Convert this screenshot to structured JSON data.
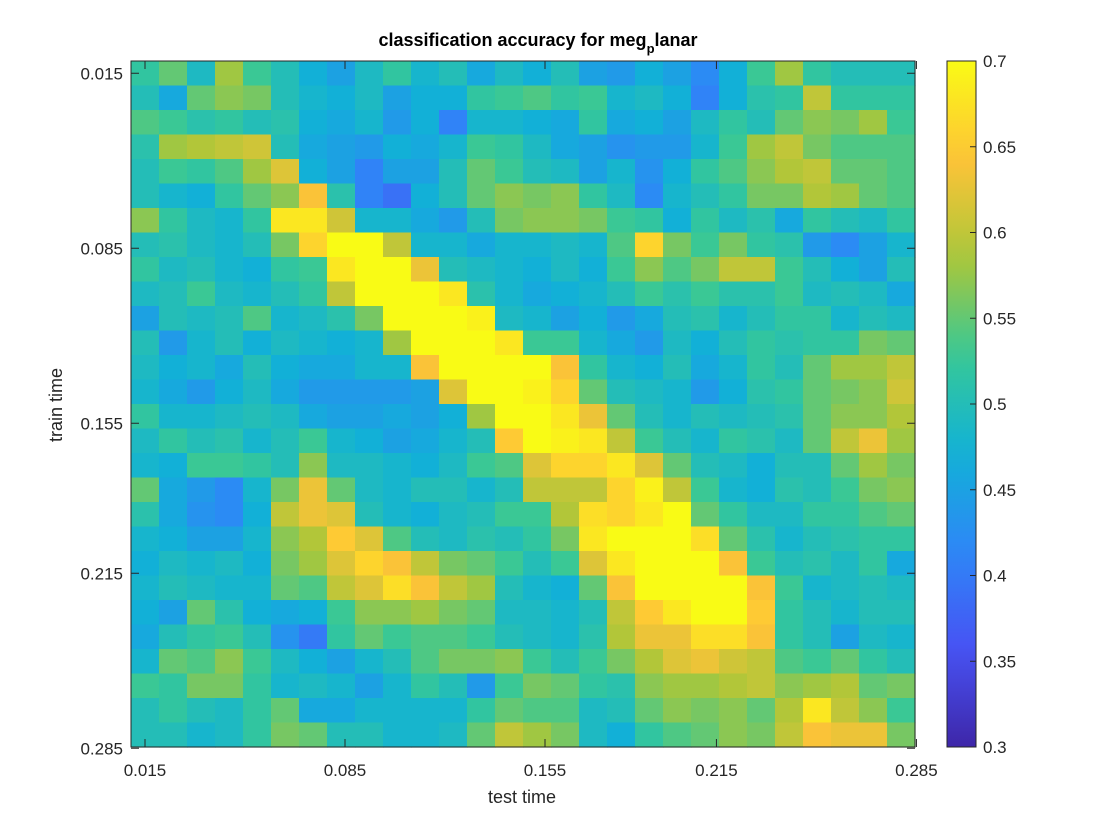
{
  "chart_data": {
    "type": "heatmap",
    "title": "classification accuracy for meg",
    "title_subscript": "p",
    "title_suffix": "lanar",
    "xlabel": "test time",
    "ylabel": "train time",
    "x_ticks": [
      0.015,
      0.085,
      0.155,
      0.215,
      0.285
    ],
    "y_ticks": [
      0.015,
      0.085,
      0.155,
      0.215,
      0.285
    ],
    "x_tick_labels": [
      "0.015",
      "0.085",
      "0.155",
      "0.215",
      "0.285"
    ],
    "y_tick_labels": [
      "0.015",
      "0.085",
      "0.155",
      "0.215",
      "0.285"
    ],
    "xlim": [
      0.015,
      0.285
    ],
    "ylim": [
      0.015,
      0.285
    ],
    "y_direction": "reversed",
    "grid_step": 0.0098,
    "n_rows": 28,
    "n_cols": 28,
    "colormap": "parula",
    "colorbar": {
      "range": [
        0.3,
        0.7
      ],
      "ticks": [
        0.3,
        0.35,
        0.4,
        0.45,
        0.5,
        0.55,
        0.6,
        0.65,
        0.7
      ],
      "tick_labels": [
        "0.3",
        "0.35",
        "0.4",
        "0.45",
        "0.5",
        "0.55",
        "0.6",
        "0.65",
        "0.7"
      ]
    },
    "values": [
      [
        0.52,
        0.55,
        0.49,
        0.58,
        0.53,
        0.5,
        0.47,
        0.45,
        0.49,
        0.52,
        0.48,
        0.5,
        0.46,
        0.49,
        0.47,
        0.5,
        0.45,
        0.44,
        0.47,
        0.45,
        0.42,
        0.47,
        0.53,
        0.58,
        0.52,
        0.5,
        0.5,
        0.5
      ],
      [
        0.5,
        0.46,
        0.55,
        0.57,
        0.56,
        0.5,
        0.48,
        0.47,
        0.49,
        0.45,
        0.47,
        0.47,
        0.52,
        0.53,
        0.54,
        0.52,
        0.53,
        0.48,
        0.49,
        0.47,
        0.41,
        0.47,
        0.51,
        0.52,
        0.6,
        0.52,
        0.52,
        0.52
      ],
      [
        0.54,
        0.53,
        0.51,
        0.52,
        0.5,
        0.51,
        0.47,
        0.46,
        0.48,
        0.44,
        0.47,
        0.41,
        0.48,
        0.48,
        0.47,
        0.46,
        0.52,
        0.46,
        0.47,
        0.45,
        0.49,
        0.52,
        0.5,
        0.55,
        0.57,
        0.56,
        0.58,
        0.53
      ],
      [
        0.51,
        0.58,
        0.59,
        0.6,
        0.61,
        0.5,
        0.46,
        0.45,
        0.44,
        0.47,
        0.46,
        0.48,
        0.53,
        0.52,
        0.49,
        0.46,
        0.45,
        0.43,
        0.44,
        0.44,
        0.48,
        0.53,
        0.58,
        0.6,
        0.56,
        0.54,
        0.54,
        0.54
      ],
      [
        0.5,
        0.53,
        0.52,
        0.54,
        0.58,
        0.62,
        0.47,
        0.45,
        0.41,
        0.45,
        0.45,
        0.5,
        0.55,
        0.53,
        0.5,
        0.49,
        0.45,
        0.48,
        0.43,
        0.47,
        0.52,
        0.54,
        0.57,
        0.59,
        0.6,
        0.55,
        0.55,
        0.54
      ],
      [
        0.5,
        0.48,
        0.47,
        0.52,
        0.55,
        0.57,
        0.64,
        0.51,
        0.41,
        0.39,
        0.47,
        0.5,
        0.55,
        0.57,
        0.56,
        0.57,
        0.52,
        0.49,
        0.42,
        0.48,
        0.5,
        0.52,
        0.56,
        0.56,
        0.59,
        0.58,
        0.55,
        0.54
      ],
      [
        0.57,
        0.52,
        0.49,
        0.48,
        0.52,
        0.68,
        0.68,
        0.61,
        0.48,
        0.48,
        0.46,
        0.44,
        0.5,
        0.56,
        0.57,
        0.57,
        0.56,
        0.53,
        0.52,
        0.47,
        0.52,
        0.49,
        0.51,
        0.46,
        0.52,
        0.5,
        0.49,
        0.52
      ],
      [
        0.5,
        0.51,
        0.49,
        0.48,
        0.5,
        0.56,
        0.66,
        0.7,
        0.7,
        0.6,
        0.48,
        0.48,
        0.46,
        0.48,
        0.48,
        0.49,
        0.48,
        0.54,
        0.66,
        0.56,
        0.53,
        0.56,
        0.52,
        0.51,
        0.44,
        0.42,
        0.45,
        0.48
      ],
      [
        0.52,
        0.49,
        0.5,
        0.48,
        0.47,
        0.52,
        0.53,
        0.68,
        0.7,
        0.7,
        0.63,
        0.5,
        0.49,
        0.48,
        0.47,
        0.49,
        0.47,
        0.53,
        0.57,
        0.54,
        0.56,
        0.6,
        0.6,
        0.53,
        0.5,
        0.47,
        0.45,
        0.5
      ],
      [
        0.49,
        0.5,
        0.53,
        0.49,
        0.48,
        0.5,
        0.52,
        0.6,
        0.7,
        0.7,
        0.7,
        0.68,
        0.51,
        0.48,
        0.46,
        0.47,
        0.48,
        0.5,
        0.53,
        0.51,
        0.53,
        0.51,
        0.51,
        0.53,
        0.49,
        0.5,
        0.49,
        0.46
      ],
      [
        0.45,
        0.5,
        0.49,
        0.5,
        0.54,
        0.48,
        0.49,
        0.51,
        0.56,
        0.7,
        0.7,
        0.7,
        0.69,
        0.49,
        0.48,
        0.45,
        0.47,
        0.44,
        0.46,
        0.5,
        0.51,
        0.48,
        0.5,
        0.52,
        0.52,
        0.48,
        0.5,
        0.49
      ],
      [
        0.5,
        0.44,
        0.48,
        0.5,
        0.47,
        0.49,
        0.48,
        0.47,
        0.48,
        0.58,
        0.7,
        0.7,
        0.7,
        0.68,
        0.53,
        0.53,
        0.48,
        0.46,
        0.44,
        0.49,
        0.47,
        0.5,
        0.52,
        0.51,
        0.52,
        0.52,
        0.56,
        0.55
      ],
      [
        0.49,
        0.47,
        0.48,
        0.46,
        0.5,
        0.47,
        0.46,
        0.46,
        0.48,
        0.48,
        0.64,
        0.7,
        0.7,
        0.7,
        0.7,
        0.64,
        0.52,
        0.48,
        0.47,
        0.5,
        0.46,
        0.48,
        0.52,
        0.5,
        0.55,
        0.58,
        0.58,
        0.6
      ],
      [
        0.48,
        0.46,
        0.44,
        0.47,
        0.49,
        0.46,
        0.44,
        0.44,
        0.44,
        0.44,
        0.45,
        0.62,
        0.7,
        0.7,
        0.69,
        0.66,
        0.55,
        0.5,
        0.49,
        0.48,
        0.44,
        0.47,
        0.51,
        0.52,
        0.55,
        0.56,
        0.57,
        0.61
      ],
      [
        0.52,
        0.48,
        0.48,
        0.49,
        0.5,
        0.49,
        0.46,
        0.45,
        0.45,
        0.46,
        0.45,
        0.47,
        0.58,
        0.7,
        0.7,
        0.68,
        0.63,
        0.55,
        0.5,
        0.48,
        0.5,
        0.49,
        0.5,
        0.51,
        0.55,
        0.57,
        0.57,
        0.59
      ],
      [
        0.49,
        0.52,
        0.5,
        0.51,
        0.48,
        0.5,
        0.53,
        0.48,
        0.47,
        0.45,
        0.46,
        0.48,
        0.5,
        0.65,
        0.7,
        0.69,
        0.68,
        0.6,
        0.53,
        0.5,
        0.48,
        0.52,
        0.51,
        0.49,
        0.55,
        0.6,
        0.63,
        0.58
      ],
      [
        0.48,
        0.47,
        0.53,
        0.53,
        0.52,
        0.5,
        0.57,
        0.49,
        0.49,
        0.48,
        0.47,
        0.49,
        0.53,
        0.54,
        0.62,
        0.66,
        0.66,
        0.68,
        0.62,
        0.55,
        0.5,
        0.49,
        0.47,
        0.5,
        0.5,
        0.55,
        0.58,
        0.56
      ],
      [
        0.55,
        0.46,
        0.44,
        0.42,
        0.48,
        0.56,
        0.63,
        0.55,
        0.49,
        0.48,
        0.5,
        0.5,
        0.48,
        0.5,
        0.6,
        0.6,
        0.6,
        0.66,
        0.69,
        0.6,
        0.53,
        0.48,
        0.47,
        0.51,
        0.5,
        0.53,
        0.56,
        0.57
      ],
      [
        0.51,
        0.46,
        0.43,
        0.42,
        0.47,
        0.6,
        0.63,
        0.62,
        0.5,
        0.48,
        0.47,
        0.49,
        0.5,
        0.53,
        0.53,
        0.59,
        0.67,
        0.66,
        0.68,
        0.7,
        0.55,
        0.52,
        0.49,
        0.49,
        0.52,
        0.52,
        0.54,
        0.55
      ],
      [
        0.48,
        0.47,
        0.45,
        0.45,
        0.48,
        0.57,
        0.59,
        0.65,
        0.62,
        0.54,
        0.5,
        0.49,
        0.51,
        0.5,
        0.52,
        0.56,
        0.68,
        0.7,
        0.7,
        0.7,
        0.67,
        0.55,
        0.51,
        0.48,
        0.5,
        0.51,
        0.52,
        0.52
      ],
      [
        0.47,
        0.49,
        0.48,
        0.49,
        0.47,
        0.56,
        0.58,
        0.62,
        0.66,
        0.64,
        0.6,
        0.56,
        0.55,
        0.53,
        0.5,
        0.53,
        0.62,
        0.68,
        0.7,
        0.7,
        0.7,
        0.64,
        0.53,
        0.5,
        0.51,
        0.49,
        0.52,
        0.46
      ],
      [
        0.48,
        0.5,
        0.49,
        0.48,
        0.48,
        0.55,
        0.54,
        0.6,
        0.62,
        0.67,
        0.64,
        0.6,
        0.58,
        0.5,
        0.48,
        0.47,
        0.55,
        0.64,
        0.7,
        0.7,
        0.7,
        0.7,
        0.64,
        0.53,
        0.48,
        0.49,
        0.5,
        0.49
      ],
      [
        0.47,
        0.45,
        0.55,
        0.51,
        0.47,
        0.46,
        0.47,
        0.53,
        0.57,
        0.57,
        0.58,
        0.56,
        0.55,
        0.49,
        0.49,
        0.48,
        0.5,
        0.6,
        0.65,
        0.68,
        0.7,
        0.7,
        0.65,
        0.52,
        0.5,
        0.48,
        0.5,
        0.5
      ],
      [
        0.46,
        0.5,
        0.52,
        0.53,
        0.5,
        0.43,
        0.4,
        0.52,
        0.55,
        0.53,
        0.54,
        0.54,
        0.53,
        0.5,
        0.49,
        0.48,
        0.51,
        0.59,
        0.63,
        0.63,
        0.67,
        0.67,
        0.64,
        0.52,
        0.5,
        0.45,
        0.49,
        0.48
      ],
      [
        0.48,
        0.55,
        0.54,
        0.57,
        0.53,
        0.49,
        0.47,
        0.45,
        0.48,
        0.5,
        0.54,
        0.56,
        0.56,
        0.57,
        0.53,
        0.5,
        0.53,
        0.56,
        0.59,
        0.62,
        0.63,
        0.61,
        0.6,
        0.54,
        0.53,
        0.55,
        0.52,
        0.5
      ],
      [
        0.53,
        0.52,
        0.56,
        0.56,
        0.52,
        0.48,
        0.49,
        0.48,
        0.45,
        0.48,
        0.52,
        0.5,
        0.44,
        0.53,
        0.56,
        0.55,
        0.52,
        0.51,
        0.57,
        0.58,
        0.58,
        0.59,
        0.6,
        0.57,
        0.58,
        0.59,
        0.55,
        0.56
      ],
      [
        0.5,
        0.52,
        0.5,
        0.49,
        0.52,
        0.55,
        0.46,
        0.46,
        0.48,
        0.48,
        0.48,
        0.48,
        0.52,
        0.55,
        0.54,
        0.54,
        0.49,
        0.5,
        0.55,
        0.57,
        0.56,
        0.57,
        0.55,
        0.59,
        0.68,
        0.6,
        0.57,
        0.53
      ],
      [
        0.5,
        0.5,
        0.48,
        0.49,
        0.52,
        0.56,
        0.55,
        0.5,
        0.5,
        0.48,
        0.48,
        0.49,
        0.55,
        0.6,
        0.58,
        0.56,
        0.49,
        0.47,
        0.52,
        0.54,
        0.55,
        0.57,
        0.56,
        0.6,
        0.64,
        0.63,
        0.63,
        0.56
      ]
    ]
  }
}
